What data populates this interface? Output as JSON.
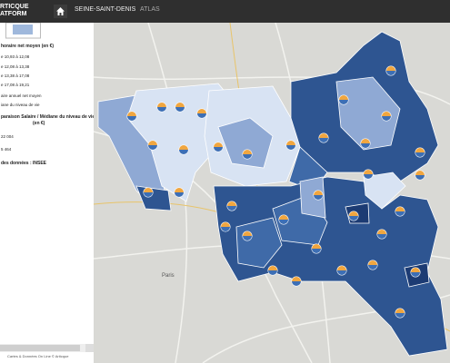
{
  "header": {
    "logo": [
      "RTICQUE",
      "ATFORM"
    ],
    "nav": [
      "SEINE-SAINT-DENIS",
      "ATLAS"
    ]
  },
  "legend": {
    "title": "horaire net moyen (en €)",
    "classes": [
      "e 10,93 à 12,08",
      "e 12,08 à 13,38",
      "e 13,38 à 17,08",
      "e 17,08 à 19,21"
    ],
    "pie_title": "aire annuel net moyen",
    "pie_sub": "iane du niveau de vie",
    "compare_title": "paraison Salaire / Médiane du niveau de vie",
    "compare_unit": "(en €)",
    "compare_values": [
      "22 004",
      "5 464"
    ],
    "source": "des données : INSEE"
  },
  "footer": "Cartes & Données On Line © Articque",
  "map": {
    "labels": [
      "Paris"
    ]
  }
}
